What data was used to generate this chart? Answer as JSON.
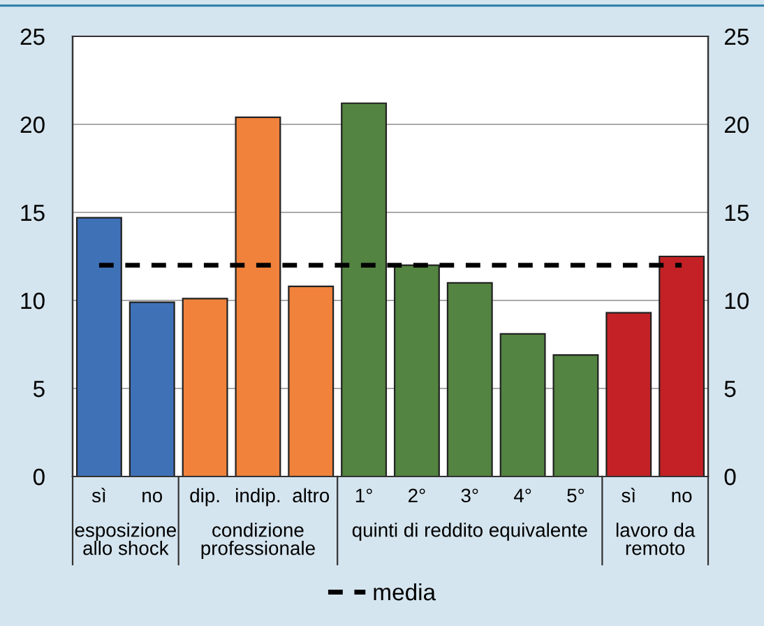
{
  "chart_data": {
    "type": "bar",
    "categories": [
      "sì",
      "no",
      "dip.",
      "indip.",
      "altro",
      "1°",
      "2°",
      "3°",
      "4°",
      "5°",
      "sì",
      "no"
    ],
    "series": [
      {
        "colors": [
          "#3f71b7",
          "#3f71b7",
          "#f0823b",
          "#f0823b",
          "#f0823b",
          "#538441",
          "#538441",
          "#538441",
          "#538441",
          "#538441",
          "#c42126",
          "#c42126"
        ],
        "values": [
          14.7,
          9.9,
          10.1,
          20.4,
          10.8,
          21.2,
          12.0,
          11.0,
          8.1,
          6.9,
          9.3,
          12.5
        ]
      },
      {
        "type": "line",
        "name": "media",
        "color": "#000000",
        "line_style": "dashed",
        "values": [
          12.0,
          12.0,
          12.0,
          12.0,
          12.0,
          12.0,
          12.0,
          12.0,
          12.0,
          12.0,
          12.0,
          12.0
        ]
      }
    ],
    "annotations": [
      "esposizione\nallo shock",
      "condizione\nprofessionale",
      "quinti di reddito equivalente",
      "lavoro da\nremoto"
    ],
    "ylim": [
      0,
      25
    ],
    "yticks": [
      0,
      5,
      10,
      15,
      20,
      25
    ],
    "y2lim": [
      0,
      25
    ],
    "y2ticks": [
      0,
      5,
      10,
      15,
      20,
      25
    ],
    "grid": "y",
    "legend": "bottom"
  }
}
